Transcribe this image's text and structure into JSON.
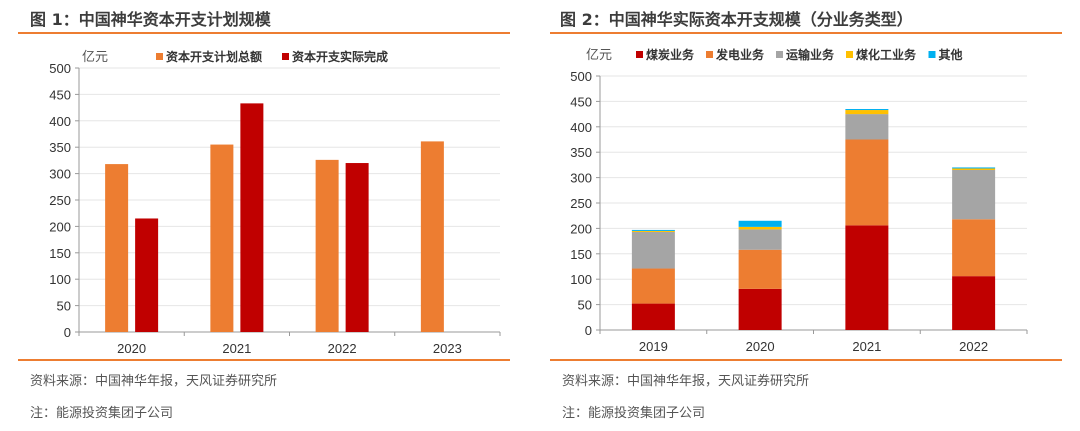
{
  "figures": [
    {
      "title": "图 1：中国神华资本开支计划规模",
      "source": "资料来源：中国神华年报，天风证券研究所",
      "note": "注：能源投资集团子公司"
    },
    {
      "title": "图 2：中国神华实际资本开支规模（分业务类型）",
      "source": "资料来源：中国神华年报，天风证券研究所",
      "note": "注：能源投资集团子公司"
    }
  ],
  "chart_data": [
    {
      "type": "bar",
      "unit_label": "亿元",
      "categories": [
        "2020",
        "2021",
        "2022",
        "2023"
      ],
      "ylim": [
        0,
        500
      ],
      "yticks": [
        0,
        50,
        100,
        150,
        200,
        250,
        300,
        350,
        400,
        450,
        500
      ],
      "grid": true,
      "legend": "top",
      "series": [
        {
          "name": "资本开支计划总额",
          "color": "#ed7d31",
          "values": [
            318,
            355,
            326,
            361
          ]
        },
        {
          "name": "资本开支实际完成",
          "color": "#c00000",
          "values": [
            215,
            433,
            320,
            null
          ]
        }
      ]
    },
    {
      "type": "stacked-bar",
      "unit_label": "亿元",
      "categories": [
        "2019",
        "2020",
        "2021",
        "2022"
      ],
      "ylim": [
        0,
        500
      ],
      "yticks": [
        0,
        50,
        100,
        150,
        200,
        250,
        300,
        350,
        400,
        450,
        500
      ],
      "grid": true,
      "legend": "top",
      "series": [
        {
          "name": "煤炭业务",
          "color": "#c00000",
          "values": [
            52,
            81,
            206,
            106
          ]
        },
        {
          "name": "发电业务",
          "color": "#ed7d31",
          "values": [
            69,
            77,
            169,
            112
          ]
        },
        {
          "name": "运输业务",
          "color": "#a5a5a5",
          "values": [
            72,
            40,
            50,
            97
          ]
        },
        {
          "name": "煤化工业务",
          "color": "#ffc000",
          "values": [
            2,
            5,
            8,
            3
          ]
        },
        {
          "name": "其他",
          "color": "#00b0f0",
          "values": [
            2,
            12,
            2,
            2
          ]
        }
      ]
    }
  ]
}
